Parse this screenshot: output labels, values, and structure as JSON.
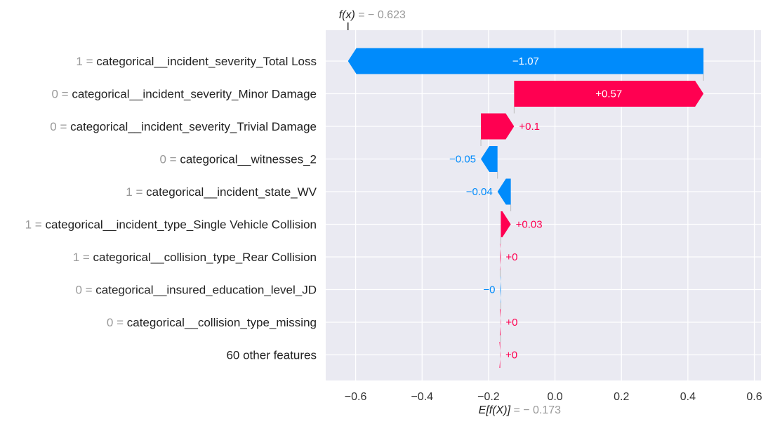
{
  "chart_data": {
    "type": "waterfall",
    "base_value": -0.173,
    "final_value": -0.623,
    "fx_label": "f(x)",
    "fx_value_text": " = − 0.623",
    "efx_label": "E[f(X)]",
    "efx_value_text": " = − 0.173",
    "xlim": [
      -0.69,
      0.62
    ],
    "xticks": [
      -0.6,
      -0.4,
      -0.2,
      0.0,
      0.2,
      0.4,
      0.6
    ],
    "xtick_labels": [
      "−0.6",
      "−0.4",
      "−0.2",
      "0.0",
      "0.2",
      "0.4",
      "0.6"
    ],
    "grid": true,
    "colors": {
      "positive": "#ff0051",
      "negative": "#008bfb",
      "background": "#eaeaf2",
      "grid": "#ffffff"
    },
    "features": [
      {
        "value": "1",
        "name": "categorical__incident_severity_Total Loss",
        "contribution": -1.07,
        "label": "−1.07"
      },
      {
        "value": "0",
        "name": "categorical__incident_severity_Minor Damage",
        "contribution": 0.57,
        "label": "+0.57"
      },
      {
        "value": "0",
        "name": "categorical__incident_severity_Trivial Damage",
        "contribution": 0.1,
        "label": "+0.1"
      },
      {
        "value": "0",
        "name": "categorical__witnesses_2",
        "contribution": -0.05,
        "label": "−0.05"
      },
      {
        "value": "1",
        "name": "categorical__incident_state_WV",
        "contribution": -0.04,
        "label": "−0.04"
      },
      {
        "value": "1",
        "name": "categorical__incident_type_Single Vehicle Collision",
        "contribution": 0.03,
        "label": "+0.03"
      },
      {
        "value": "1",
        "name": "categorical__collision_type_Rear Collision",
        "contribution": 0.002,
        "label": "+0"
      },
      {
        "value": "0",
        "name": "categorical__insured_education_level_JD",
        "contribution": -0.002,
        "label": "−0"
      },
      {
        "value": "0",
        "name": "categorical__collision_type_missing",
        "contribution": 0.001,
        "label": "+0"
      },
      {
        "value": "",
        "name": "60 other features",
        "contribution": 0.001,
        "label": "+0"
      }
    ]
  }
}
